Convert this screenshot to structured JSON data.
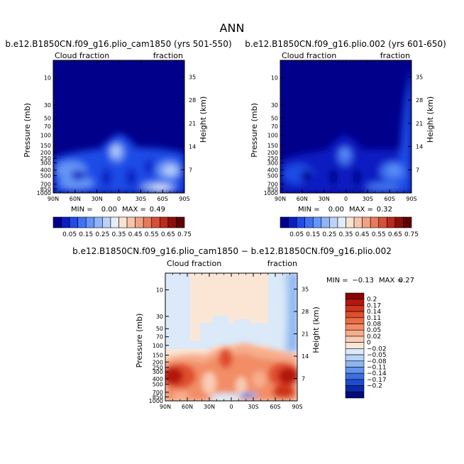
{
  "page_title": "ANN",
  "chart_data": [
    {
      "type": "heatmap",
      "id": "top-left",
      "title": "b.e12.B1850CN.f09_g16.plio_cam1850 (yrs 501-550)",
      "left_label": "Cloud fraction",
      "right_label": "fraction",
      "ylabel": "Pressure (mb)",
      "y2label": "Height (km)",
      "x_ticks": [
        "90N",
        "60N",
        "30N",
        "0",
        "30S",
        "60S",
        "90S"
      ],
      "y_ticks": [
        "10",
        "30",
        "50",
        "70",
        "100",
        "150",
        "200",
        "250",
        "300",
        "400",
        "500",
        "700",
        "850",
        "1000"
      ],
      "y2_ticks": [
        "35",
        "28",
        "21",
        "14",
        "7"
      ],
      "min_label": "MIN =",
      "min_value": "0.00",
      "max_label": "MAX =",
      "max_value": "0.49",
      "colorbar": [
        "0.05",
        "0.15",
        "0.25",
        "0.35",
        "0.45",
        "0.55",
        "0.65",
        "0.75"
      ],
      "colors": [
        "#00008b",
        "#0a1fc2",
        "#1f4be6",
        "#3f72f2",
        "#6595f5",
        "#8fb4f7",
        "#bcd2f8",
        "#e2ecfa",
        "#fbe2d1",
        "#f7c5ab",
        "#f1a184",
        "#e77a5c",
        "#d64f38",
        "#bb2a1a",
        "#8c0e0a",
        "#600000"
      ]
    },
    {
      "type": "heatmap",
      "id": "top-right",
      "title": "b.e12.B1850CN.f09_g16.plio.002 (yrs 601-650)",
      "left_label": "Cloud fraction",
      "right_label": "fraction",
      "ylabel": "Pressure (mb)",
      "y2label": "Height (km)",
      "x_ticks": [
        "90N",
        "60N",
        "30N",
        "0",
        "30S",
        "60S",
        "90S"
      ],
      "y_ticks": [
        "10",
        "30",
        "50",
        "70",
        "100",
        "150",
        "200",
        "250",
        "300",
        "400",
        "500",
        "700",
        "850",
        "1000"
      ],
      "y2_ticks": [
        "35",
        "28",
        "21",
        "14",
        "7"
      ],
      "min_label": "MIN =",
      "min_value": "0.00",
      "max_label": "MAX =",
      "max_value": "0.32",
      "colorbar": [
        "0.05",
        "0.15",
        "0.25",
        "0.35",
        "0.45",
        "0.55",
        "0.65",
        "0.75"
      ]
    },
    {
      "type": "heatmap",
      "id": "bottom",
      "title": "b.e12.B1850CN.f09_g16.plio_cam1850 − b.e12.B1850CN.f09_g16.plio.002",
      "left_label": "Cloud fraction",
      "right_label": "fraction",
      "ylabel": "Pressure (mb)",
      "y2label": "Height (km)",
      "x_ticks": [
        "90N",
        "60N",
        "30N",
        "0",
        "30S",
        "60S",
        "90S"
      ],
      "y_ticks": [
        "10",
        "30",
        "50",
        "70",
        "100",
        "150",
        "200",
        "250",
        "300",
        "400",
        "500",
        "700",
        "850",
        "1000"
      ],
      "y2_ticks": [
        "35",
        "28",
        "21",
        "14",
        "7"
      ],
      "min_label": "MIN =",
      "min_value": "−0.13",
      "max_label": "MAX =",
      "max_value": "0.27",
      "colorbar": [
        "0.2",
        "0.17",
        "0.14",
        "0.11",
        "0.08",
        "0.05",
        "0.02",
        "0",
        "−0.02",
        "−0.05",
        "−0.08",
        "−0.11",
        "−0.14",
        "−0.17",
        "−0.2"
      ],
      "colors": [
        "#8c0000",
        "#b3170c",
        "#cf3219",
        "#e04e2e",
        "#ea6d48",
        "#f28d66",
        "#f6ad8c",
        "#f9ccb3",
        "#fbe6d6",
        "#dbe9f8",
        "#b6d2f5",
        "#8db5f1",
        "#6493ea",
        "#3e6fe0",
        "#1f4bcf",
        "#0b2aa8",
        "#000c7a"
      ]
    }
  ]
}
